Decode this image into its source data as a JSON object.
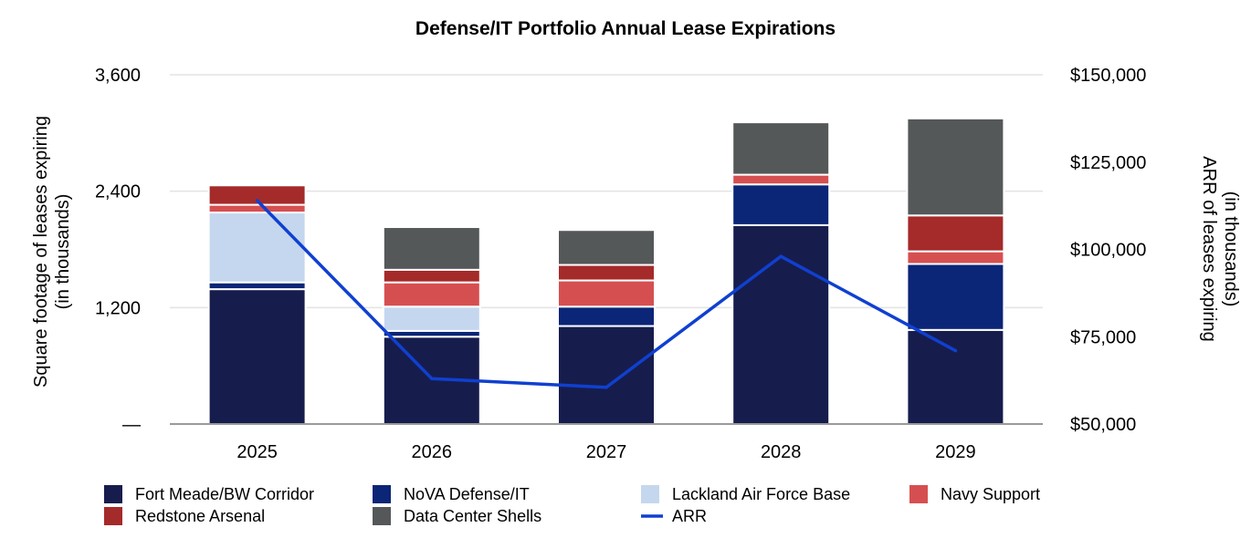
{
  "chart_data": {
    "type": "bar",
    "stacked": true,
    "title": "Defense/IT Portfolio Annual Lease Expirations",
    "categories": [
      "2025",
      "2026",
      "2027",
      "2028",
      "2029"
    ],
    "series": [
      {
        "name": "Fort Meade/BW Corridor",
        "color": "#161d4d",
        "values": [
          1390,
          900,
          1010,
          2050,
          970
        ]
      },
      {
        "name": "NoVA Defense/IT",
        "color": "#0b2577",
        "values": [
          70,
          60,
          200,
          420,
          680
        ]
      },
      {
        "name": "Lackland Air Force Base",
        "color": "#c5d7ee",
        "values": [
          720,
          250,
          0,
          0,
          0
        ]
      },
      {
        "name": "Navy Support",
        "color": "#d64f50",
        "values": [
          80,
          250,
          270,
          100,
          130
        ]
      },
      {
        "name": "Redstone Arsenal",
        "color": "#a52a2a",
        "values": [
          200,
          130,
          160,
          0,
          370
        ]
      },
      {
        "name": "Data Center Shells",
        "color": "#555859",
        "values": [
          0,
          440,
          360,
          540,
          1000
        ]
      }
    ],
    "line_series": {
      "name": "ARR",
      "color": "#1040d0",
      "axis": "right",
      "values": [
        114000,
        63000,
        60500,
        98000,
        71000
      ]
    },
    "ylabel": "Square footage of leases expiring (in thousands)",
    "ylabel_lines": [
      "Square footage of leases expiring",
      "(in thousands)"
    ],
    "ylim": [
      0,
      3600
    ],
    "yticks": [
      0,
      1200,
      2400,
      3600
    ],
    "ytick_labels": [
      "—",
      "1,200",
      "2,400",
      "3,600"
    ],
    "y2label": "ARR of leases expiring (in thousands)",
    "y2label_lines": [
      "ARR of leases expiring",
      "(in thousands)"
    ],
    "y2lim": [
      50000,
      150000
    ],
    "y2ticks": [
      50000,
      75000,
      100000,
      125000,
      150000
    ],
    "y2tick_labels": [
      "$50,000",
      "$75,000",
      "$100,000",
      "$125,000",
      "$150,000"
    ],
    "grid": true,
    "legend": {
      "position": "bottom",
      "rows": [
        [
          "Fort Meade/BW Corridor",
          "NoVA Defense/IT",
          "Lackland Air Force Base",
          "Navy Support"
        ],
        [
          "Redstone Arsenal",
          "Data Center Shells",
          "ARR"
        ]
      ]
    }
  }
}
